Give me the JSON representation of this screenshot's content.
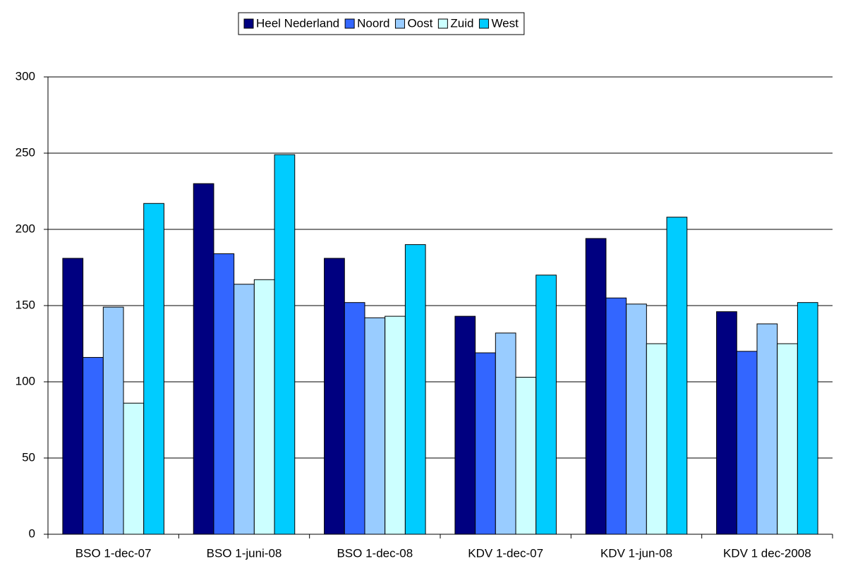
{
  "chart_data": {
    "type": "bar",
    "categories": [
      "BSO 1-dec-07",
      "BSO 1-juni-08",
      "BSO 1-dec-08",
      "KDV 1-dec-07",
      "KDV 1-jun-08",
      "KDV 1 dec-2008"
    ],
    "series": [
      {
        "name": "Heel Nederland",
        "color": "#000080",
        "values": [
          181,
          230,
          181,
          143,
          194,
          146
        ]
      },
      {
        "name": "Noord",
        "color": "#3366ff",
        "values": [
          116,
          184,
          152,
          119,
          155,
          120
        ]
      },
      {
        "name": "Oost",
        "color": "#99ccff",
        "values": [
          149,
          164,
          142,
          132,
          151,
          138
        ]
      },
      {
        "name": "Zuid",
        "color": "#ccffff",
        "values": [
          86,
          167,
          143,
          103,
          125,
          125
        ]
      },
      {
        "name": "West",
        "color": "#00ccff",
        "values": [
          217,
          249,
          190,
          170,
          208,
          152
        ]
      }
    ],
    "ylim": [
      0,
      300
    ],
    "yticks": [
      0,
      50,
      100,
      150,
      200,
      250,
      300
    ],
    "grid": true,
    "legend": "top"
  }
}
